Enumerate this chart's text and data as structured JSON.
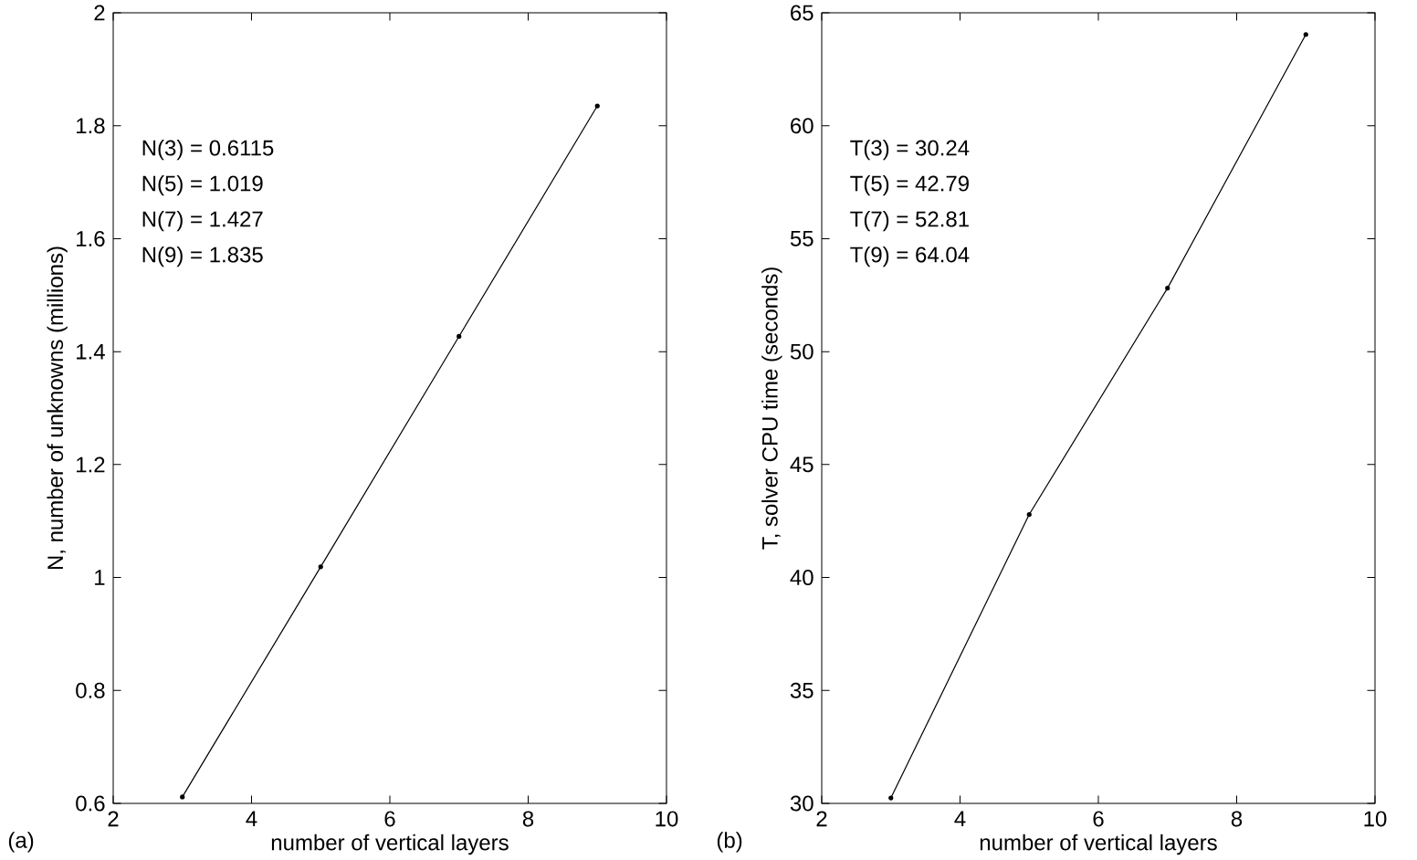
{
  "chart_data": [
    {
      "type": "line",
      "xlabel": "number of vertical layers",
      "ylabel": "N, number of unknowns (millions)",
      "x": [
        3,
        5,
        7,
        9
      ],
      "series": [
        {
          "color": "#000000",
          "values": [
            0.6115,
            1.019,
            1.427,
            1.835
          ]
        }
      ],
      "xlim": [
        2,
        10
      ],
      "xticks": [
        2,
        4,
        6,
        8,
        10
      ],
      "ylim": [
        0.6,
        2
      ],
      "yticks": [
        0.6,
        0.8,
        1,
        1.2,
        1.4,
        1.6,
        1.8,
        2
      ],
      "grid": false,
      "marker": "circle",
      "line_style": "solid",
      "annotations": [
        "N(3) = 0.6115",
        "N(5) = 1.019",
        "N(7) = 1.427",
        "N(9) = 1.835",
        "(a)"
      ]
    },
    {
      "type": "line",
      "xlabel": "number of vertical layers",
      "ylabel": "T, solver CPU time (seconds)",
      "x": [
        3,
        5,
        7,
        9
      ],
      "series": [
        {
          "color": "#000000",
          "values": [
            30.24,
            42.79,
            52.81,
            64.04
          ]
        }
      ],
      "xlim": [
        2,
        10
      ],
      "xticks": [
        2,
        4,
        6,
        8,
        10
      ],
      "ylim": [
        30,
        65
      ],
      "yticks": [
        30,
        35,
        40,
        45,
        50,
        55,
        60,
        65
      ],
      "grid": false,
      "marker": "circle",
      "line_style": "solid",
      "annotations": [
        "T(3) = 30.24",
        "T(5) = 42.79",
        "T(7) = 52.81",
        "T(9) = 64.04",
        "(b)"
      ]
    }
  ]
}
